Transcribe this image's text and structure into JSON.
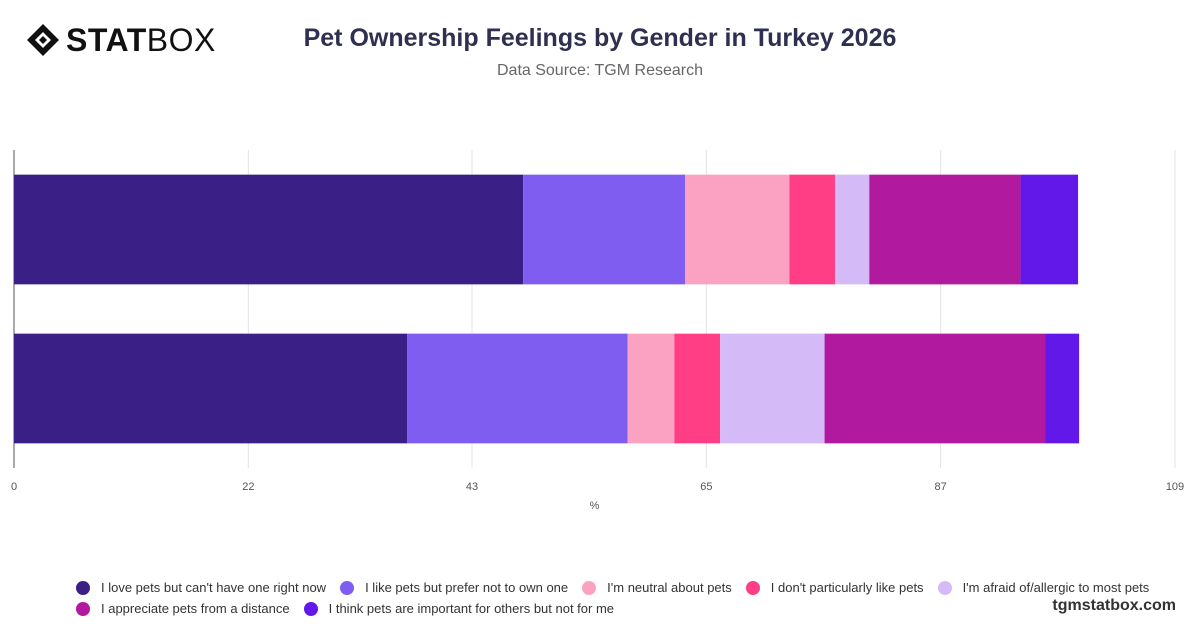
{
  "brand": {
    "logo_bold": "STAT",
    "logo_light": "BOX",
    "website": "tgmstatbox.com"
  },
  "header": {
    "title": "Pet Ownership Feelings by Gender in Turkey 2026",
    "subtitle": "Data Source: TGM Research"
  },
  "chart_data": {
    "type": "bar",
    "orientation": "horizontal",
    "stacked": true,
    "title": "Pet Ownership Feelings by Gender in Turkey 2026",
    "xlabel": "%",
    "ylabel": "",
    "xlim": [
      0,
      109
    ],
    "x_ticks": [
      "0",
      "22",
      "43",
      "65",
      "87",
      "109"
    ],
    "grid": true,
    "legend_position": "bottom",
    "categories": [
      "",
      ""
    ],
    "series": [
      {
        "name": "I love pets but can't have one right now",
        "color": "#3a1f87",
        "values": [
          47.8,
          36.9
        ]
      },
      {
        "name": "I like pets but prefer not to own one",
        "color": "#7f5df0",
        "values": [
          15.2,
          20.7
        ]
      },
      {
        "name": "I'm neutral about pets",
        "color": "#fba1c2",
        "values": [
          9.8,
          4.4
        ]
      },
      {
        "name": "I don't particularly like pets",
        "color": "#ff3e85",
        "values": [
          4.3,
          4.3
        ]
      },
      {
        "name": "I'm afraid of/allergic to most pets",
        "color": "#d4bbf7",
        "values": [
          3.2,
          9.8
        ]
      },
      {
        "name": "I appreciate pets from a distance",
        "color": "#b1199f",
        "values": [
          14.2,
          20.7
        ]
      },
      {
        "name": "I think pets are important for others but not for me",
        "color": "#6218e8",
        "values": [
          5.4,
          3.2
        ]
      }
    ]
  }
}
